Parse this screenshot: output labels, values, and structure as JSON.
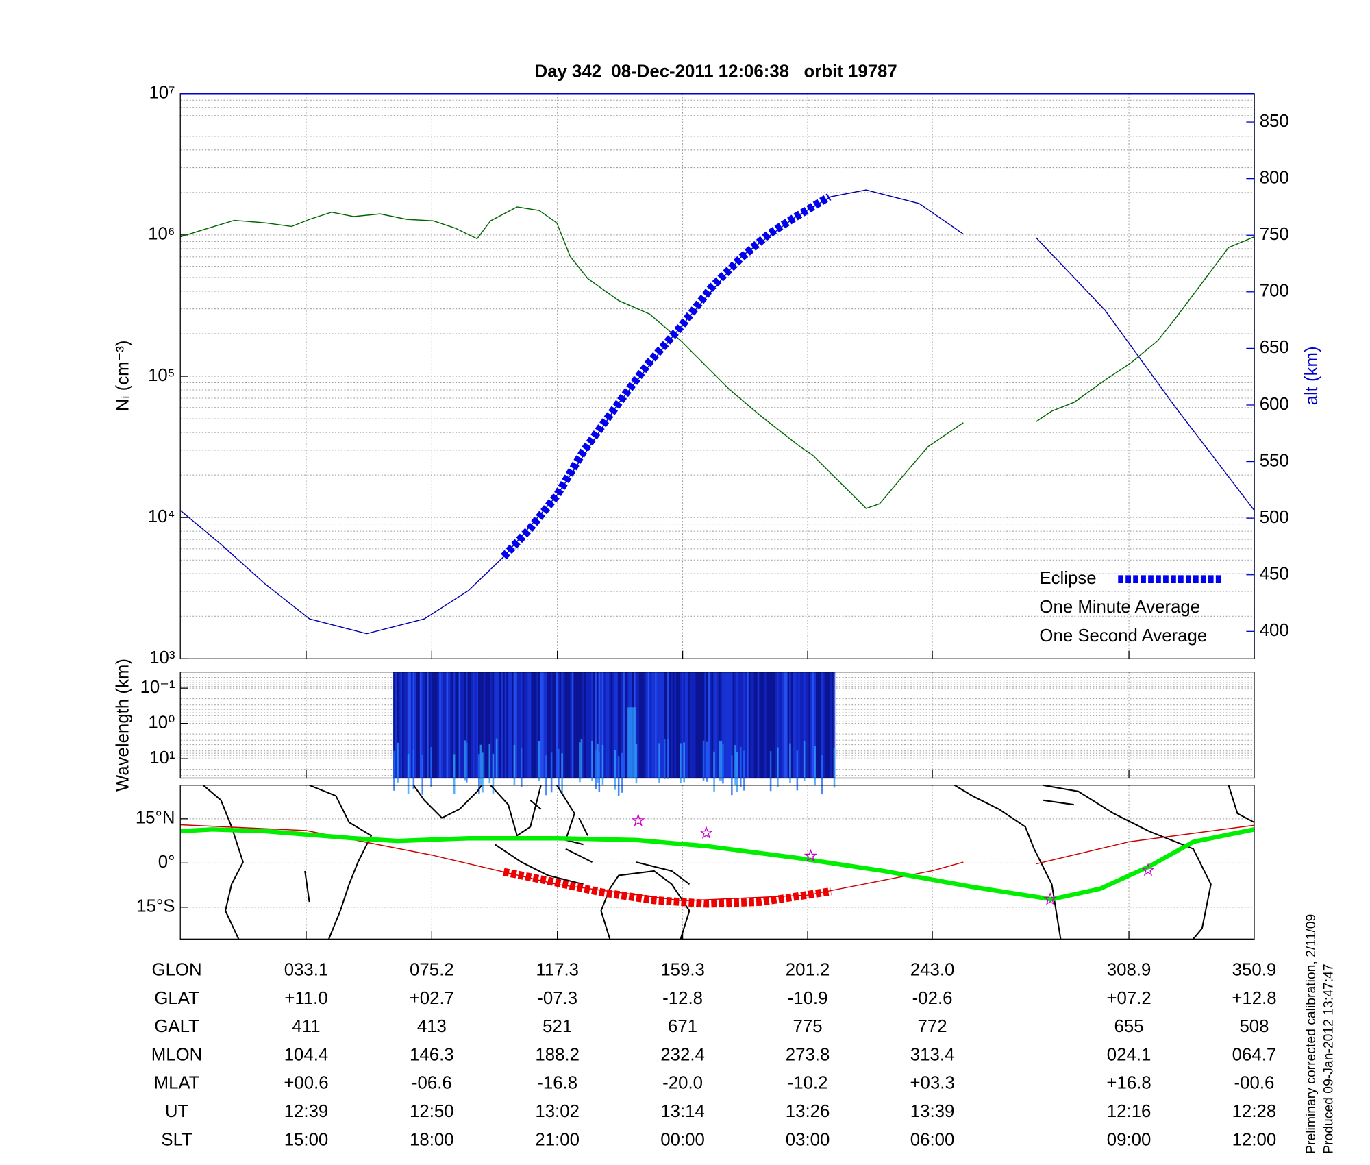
{
  "chart_data": [
    {
      "type": "line",
      "title": "Day 342  08-Dec-2011 12:06:38   orbit 19787",
      "ylabel": "Nᵢ (cm⁻³)",
      "y2label": "alt (km)",
      "y2color": "#0000cc",
      "xlim": [
        -9.1,
        350.9
      ],
      "xticks": [
        33.1,
        75.2,
        117.3,
        159.3,
        201.2,
        243.0,
        308.9
      ],
      "yscale": "log",
      "ylim": [
        1000,
        10000000
      ],
      "yticks": [
        {
          "value": 1000,
          "label": "10³"
        },
        {
          "value": 10000,
          "label": "10⁴"
        },
        {
          "value": 100000,
          "label": "10⁵"
        },
        {
          "value": 1000000,
          "label": "10⁶"
        },
        {
          "value": 10000000,
          "label": "10⁷"
        }
      ],
      "y2lim": [
        375.8,
        875
      ],
      "y2ticks": [
        400,
        450,
        500,
        550,
        600,
        650,
        700,
        750,
        800,
        850
      ],
      "grid": true,
      "legend": "lower right",
      "series": [
        {
          "name": "Eclipse",
          "color": "#0000ee",
          "legend_color": "#0000cc",
          "style": "thick-dotted",
          "axis": "y2",
          "x": [
            99.3,
            108.2,
            117.1,
            126.0,
            137.9,
            148.2,
            158.6,
            169.0,
            179.3,
            188.2,
            197.1,
            208.4
          ],
          "values": [
            466,
            491,
            520,
            559,
            602,
            638,
            669,
            704,
            731,
            751,
            766,
            784
          ]
        },
        {
          "name": "One Minute Average",
          "color": "#006400",
          "legend_color": "#000000",
          "x": [
            -9.1,
            -1.4,
            9.0,
            19.3,
            28.2,
            34.2,
            41.6,
            49.0,
            57.9,
            66.8,
            75.6,
            83.0,
            90.4,
            94.9,
            103.8,
            111.2,
            117.1,
            121.6,
            127.5,
            137.9,
            148.2,
            158.6,
            167.5,
            174.9,
            185.3,
            198.6,
            203.0,
            210.4,
            216.4,
            220.8,
            225.3,
            232.7,
            241.6,
            253.4,
            null,
            277.7,
            283.0,
            290.5,
            300.8,
            309.7,
            318.6,
            324.5,
            333.4,
            342.3,
            350.9
          ],
          "values": [
            970000,
            1090000,
            1270000,
            1220000,
            1150000,
            1290000,
            1450000,
            1350000,
            1410000,
            1290000,
            1260000,
            1120000,
            940000,
            1260000,
            1580000,
            1490000,
            1220000,
            705000,
            492000,
            343000,
            276000,
            179000,
            116000,
            81000,
            52700,
            31800,
            27500,
            19200,
            14400,
            11600,
            12500,
            19200,
            31800,
            46900,
            null,
            47600,
            56600,
            65400,
            93700,
            125000,
            179000,
            257000,
            457000,
            815000,
            970000
          ]
        },
        {
          "name": "One Second Average",
          "color": "#00ee00",
          "legend_color": "#00dd00",
          "x": [],
          "values": []
        },
        {
          "color": "#0000aa",
          "axis": "y2",
          "x": [
            -9.1,
            4.5,
            19.3,
            34.2,
            53.4,
            72.7,
            87.5,
            99.3,
            117.1,
            137.9,
            158.6,
            179.3,
            197.1,
            209.0,
            220.8,
            238.6,
            253.4,
            null,
            277.7,
            300.8,
            324.5,
            350.9
          ],
          "values": [
            507,
            477,
            442,
            411,
            398,
            411,
            436,
            466,
            520,
            602,
            669,
            732,
            766,
            784,
            790,
            778,
            751,
            null,
            748,
            684,
            598,
            507
          ]
        }
      ]
    },
    {
      "type": "spectrogram",
      "ylabel": "Wavelength (km)",
      "xlim": [
        -9.1,
        350.9
      ],
      "xticks": [
        33.1,
        75.2,
        117.3,
        159.3,
        201.2,
        243.0,
        308.9
      ],
      "yscale": "log",
      "ylim": [
        35.5,
        0.035
      ],
      "yticks": [
        {
          "value": 0.1,
          "label": "10⁻¹"
        },
        {
          "value": 1,
          "label": "10⁰"
        },
        {
          "value": 10,
          "label": "10¹"
        }
      ],
      "coverage": [
        62.3,
        209.9
      ],
      "grid": true
    },
    {
      "type": "map",
      "xlim": [
        -9.1,
        350.9
      ],
      "xticks": [
        33.1,
        75.2,
        117.3,
        159.3,
        201.2,
        243.0,
        308.9
      ],
      "ylim": [
        -25.8,
        26.4
      ],
      "yticks": [
        {
          "value": 15,
          "label": "15°N"
        },
        {
          "value": 0,
          "label": "0°"
        },
        {
          "value": -15,
          "label": "15°S"
        }
      ],
      "grid": true,
      "series": [
        {
          "color": "#cc0000",
          "style": "thin",
          "x": [
            -9.1,
            33.1,
            75.2,
            117.3,
            159.3,
            201.2,
            243.0,
            253.4,
            null,
            277.7,
            308.9,
            350.9
          ],
          "values": [
            13.0,
            11.0,
            2.7,
            -7.3,
            -12.8,
            -10.9,
            -2.6,
            0.3,
            null,
            -0.3,
            7.2,
            12.8
          ]
        },
        {
          "color": "#00ee00",
          "style": "thick",
          "x": [
            -9.1,
            1.6,
            19.3,
            49.0,
            63.8,
            87.5,
            117.1,
            143.8,
            167.5,
            197.1,
            226.7,
            256.4,
            283.0,
            299.3,
            315.6,
            330.5,
            350.9
          ],
          "values": [
            10.8,
            11.4,
            10.8,
            8.4,
            7.5,
            8.4,
            8.4,
            7.8,
            5.7,
            1.8,
            -2.7,
            -8.1,
            -12.3,
            -8.7,
            -1.2,
            7.2,
            11.4
          ]
        },
        {
          "color": "#ee0000",
          "style": "thick-dotted",
          "x": [
            99.3,
            114.1,
            131.9,
            149.7,
            167.5,
            185.3,
            209.0
          ],
          "values": [
            -3.0,
            -6.0,
            -9.9,
            -12.6,
            -13.8,
            -13.2,
            -9.6
          ]
        },
        {
          "color": "#cc00cc",
          "style": "star",
          "x": [
            144.4,
            167.2,
            202.2,
            282.5,
            315.3
          ],
          "values": [
            14.4,
            10.2,
            2.4,
            -12.3,
            -2.4
          ]
        }
      ]
    }
  ],
  "table": {
    "rows": [
      {
        "label": "GLON",
        "values": [
          "033.1",
          "075.2",
          "117.3",
          "159.3",
          "201.2",
          "243.0",
          "308.9",
          "350.9"
        ]
      },
      {
        "label": "GLAT",
        "values": [
          "+11.0",
          "+02.7",
          "-07.3",
          "-12.8",
          "-10.9",
          "-02.6",
          "+07.2",
          "+12.8"
        ]
      },
      {
        "label": "GALT",
        "values": [
          "411",
          "413",
          "521",
          "671",
          "775",
          "772",
          "655",
          "508"
        ]
      },
      {
        "label": "MLON",
        "values": [
          "104.4",
          "146.3",
          "188.2",
          "232.4",
          "273.8",
          "313.4",
          "024.1",
          "064.7"
        ]
      },
      {
        "label": "MLAT",
        "values": [
          "+00.6",
          "-06.6",
          "-16.8",
          "-20.0",
          "-10.2",
          "+03.3",
          "+16.8",
          "-00.6"
        ]
      },
      {
        "label": "UT",
        "values": [
          "12:39",
          "12:50",
          "13:02",
          "13:14",
          "13:26",
          "13:39",
          "12:16",
          "12:28"
        ]
      },
      {
        "label": "SLT",
        "values": [
          "15:00",
          "18:00",
          "21:00",
          "00:00",
          "03:00",
          "06:00",
          "09:00",
          "12:00"
        ]
      }
    ]
  },
  "footer": [
    "Preliminary corrected calibration, 2/11/09",
    "Produced 09-Jan-2012 13:47:47"
  ]
}
